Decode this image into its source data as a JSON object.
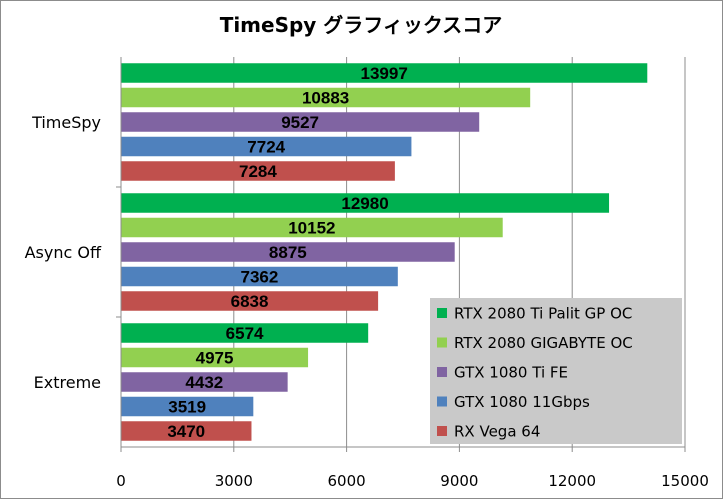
{
  "chart_data": {
    "type": "bar",
    "orientation": "horizontal",
    "title": "TimeSpy グラフィックスコア",
    "categories": [
      "TimeSpy",
      "Async Off",
      "Extreme"
    ],
    "series": [
      {
        "name": "RTX 2080 Ti Palit GP OC",
        "color": "#00b050",
        "values": [
          13997,
          12980,
          6574
        ]
      },
      {
        "name": "RTX 2080 GIGABYTE OC",
        "color": "#92d050",
        "values": [
          10883,
          10152,
          4975
        ]
      },
      {
        "name": "GTX 1080 Ti FE",
        "color": "#8064a2",
        "values": [
          9527,
          8875,
          4432
        ]
      },
      {
        "name": "GTX 1080 11Gbps",
        "color": "#4f81bd",
        "values": [
          7724,
          7362,
          3519
        ]
      },
      {
        "name": "RX Vega 64",
        "color": "#c0504d",
        "values": [
          7284,
          6838,
          3470
        ]
      }
    ],
    "xlim": [
      0,
      15000
    ],
    "xticks": [
      0,
      3000,
      6000,
      9000,
      12000,
      15000
    ],
    "gridlines": "vertical",
    "legend_position": "bottom-right",
    "data_labels": true
  }
}
